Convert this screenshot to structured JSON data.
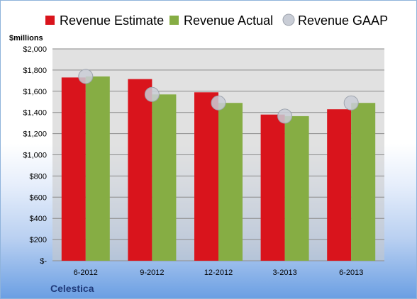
{
  "chart_data": {
    "type": "bar",
    "categories": [
      "6-2012",
      "9-2012",
      "12-2012",
      "3-2013",
      "6-2013"
    ],
    "series": [
      {
        "name": "Revenue Estimate",
        "values": [
          1730,
          1715,
          1590,
          1380,
          1430
        ],
        "color": "#d9141c"
      },
      {
        "name": "Revenue Actual",
        "values": [
          1740,
          1570,
          1490,
          1365,
          1490
        ],
        "color": "#86ad44"
      },
      {
        "name": "Revenue GAAP",
        "values": [
          1740,
          1570,
          1490,
          1365,
          1490
        ],
        "color": "#c9cdd6",
        "marker": "circle"
      }
    ],
    "ylabel": "$millions",
    "ylim": [
      0,
      2000
    ],
    "yticks": [
      0,
      200,
      400,
      600,
      800,
      1000,
      1200,
      1400,
      1600,
      1800,
      2000
    ],
    "ytick_labels": [
      "$-",
      "$200",
      "$400",
      "$600",
      "$800",
      "$1,000",
      "$1,200",
      "$1,400",
      "$1,600",
      "$1,800",
      "$2,000"
    ],
    "grid": true,
    "legend_position": "top"
  },
  "company": "Celestica"
}
